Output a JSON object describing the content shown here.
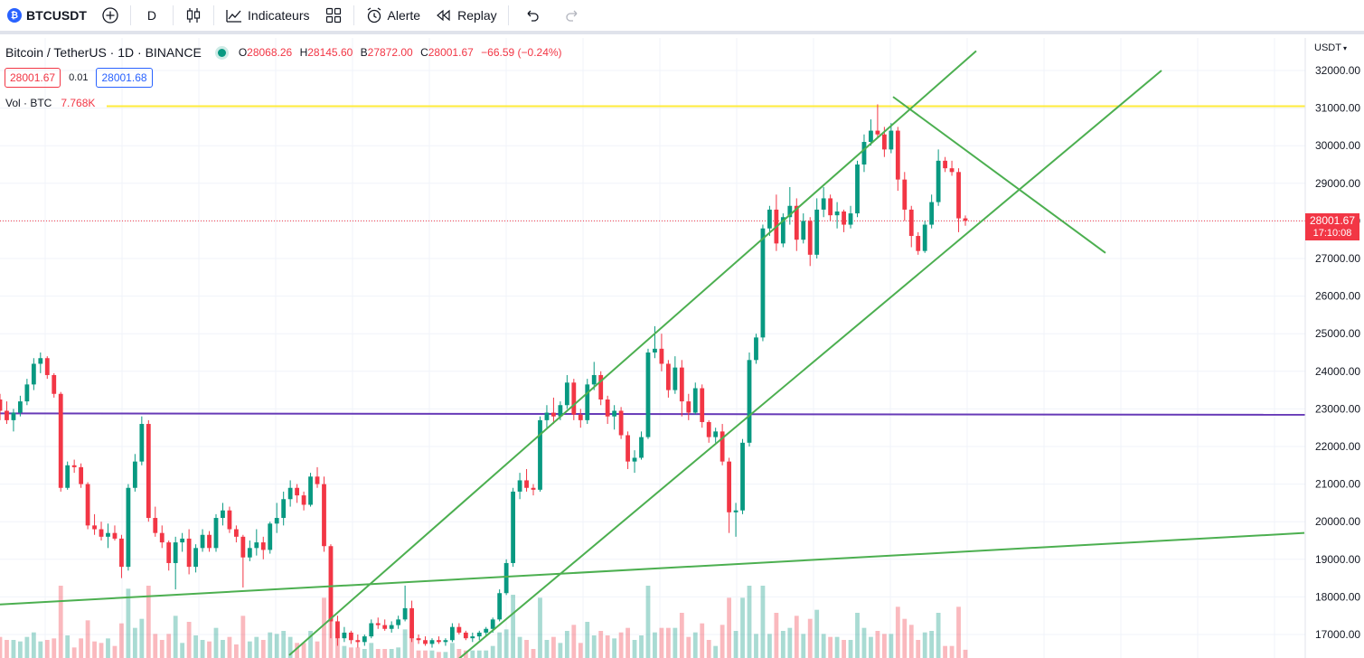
{
  "toolbar": {
    "symbol": "BTCUSDT",
    "logo_glyph": "₿",
    "interval": "D",
    "indicators_label": "Indicateurs",
    "alert_label": "Alerte",
    "replay_label": "Replay"
  },
  "legend": {
    "title": "Bitcoin / TetherUS · 1D · BINANCE",
    "o_label": "O",
    "o": "28068.26",
    "h_label": "H",
    "h": "28145.60",
    "l_label": "B",
    "l": "27872.00",
    "c_label": "C",
    "c": "28001.67",
    "change": "−66.59 (−0.24%)"
  },
  "prices": {
    "sell": "28001.67",
    "spread": "0.01",
    "buy": "28001.68"
  },
  "volume": {
    "label": "Vol · BTC",
    "value": "7.768K"
  },
  "axis": {
    "unit": "USDT",
    "caret": "▾"
  },
  "last_price": {
    "price": "28001.67",
    "countdown": "17:10:08"
  },
  "colors": {
    "up": "#089981",
    "down": "#f23645",
    "trendline": "#4caf50",
    "level_yellow": "#ffeb3b",
    "level_purple": "#673ab7",
    "accent": "#2962ff"
  },
  "chart_data": {
    "type": "candlestick",
    "y_ticks": [
      "32000.00",
      "31000.00",
      "30000.00",
      "29000.00",
      "28000.00",
      "27000.00",
      "26000.00",
      "25000.00",
      "24000.00",
      "23000.00",
      "22000.00",
      "21000.00",
      "20000.00",
      "19000.00",
      "18000.00",
      "17000.00"
    ],
    "ylim": [
      16600,
      32500
    ],
    "last_close": 28001.67,
    "horizontal_levels": [
      {
        "price": 31050,
        "color": "yellow"
      },
      {
        "price": 22880,
        "color": "purple"
      }
    ],
    "trendlines": [
      {
        "p1": [
          0,
          17800
        ],
        "p2": [
          1443,
          19700
        ]
      },
      {
        "p1": [
          320,
          16450
        ],
        "p2": [
          1080,
          32520
        ]
      },
      {
        "p1": [
          505,
          16300
        ],
        "p2": [
          1285,
          32000
        ]
      },
      {
        "p1": [
          988,
          31300
        ],
        "p2": [
          1223,
          27150
        ]
      }
    ],
    "candles": [
      [
        23250,
        23400,
        22700,
        22950
      ],
      [
        22950,
        23200,
        22600,
        22700
      ],
      [
        22700,
        23000,
        22400,
        22900
      ],
      [
        22900,
        23350,
        22800,
        23200
      ],
      [
        23200,
        23800,
        23100,
        23650
      ],
      [
        23650,
        24350,
        23500,
        24200
      ],
      [
        24200,
        24500,
        23950,
        24350
      ],
      [
        24350,
        24400,
        23800,
        23900
      ],
      [
        23900,
        23950,
        23300,
        23400
      ],
      [
        23400,
        23450,
        20800,
        20900
      ],
      [
        20900,
        21600,
        20850,
        21500
      ],
      [
        21500,
        21650,
        21300,
        21450
      ],
      [
        21450,
        21550,
        20900,
        21000
      ],
      [
        21000,
        21050,
        19800,
        19900
      ],
      [
        19900,
        20200,
        19650,
        19800
      ],
      [
        19800,
        20000,
        19500,
        19600
      ],
      [
        19600,
        19950,
        19300,
        19700
      ],
      [
        19700,
        19900,
        19500,
        19550
      ],
      [
        19550,
        19650,
        18500,
        18800
      ],
      [
        18800,
        21000,
        18700,
        20900
      ],
      [
        20900,
        21800,
        20800,
        21600
      ],
      [
        21600,
        22800,
        21500,
        22600
      ],
      [
        22600,
        22700,
        20000,
        20100
      ],
      [
        20100,
        20400,
        19600,
        19700
      ],
      [
        19700,
        19900,
        19300,
        19450
      ],
      [
        19450,
        19500,
        18700,
        18900
      ],
      [
        18900,
        19600,
        18200,
        19450
      ],
      [
        19450,
        19700,
        19200,
        19550
      ],
      [
        19550,
        19800,
        18600,
        18800
      ],
      [
        18800,
        19400,
        18650,
        19300
      ],
      [
        19300,
        19800,
        19200,
        19650
      ],
      [
        19650,
        19750,
        19200,
        19300
      ],
      [
        19300,
        20200,
        19200,
        20100
      ],
      [
        20100,
        20500,
        19900,
        20300
      ],
      [
        20300,
        20400,
        19700,
        19800
      ],
      [
        19800,
        19900,
        19450,
        19600
      ],
      [
        19600,
        19650,
        18250,
        19050
      ],
      [
        19050,
        19500,
        18950,
        19300
      ],
      [
        19300,
        19800,
        19100,
        19450
      ],
      [
        19450,
        19600,
        19000,
        19250
      ],
      [
        19250,
        20000,
        19150,
        19950
      ],
      [
        19950,
        20500,
        19700,
        20100
      ],
      [
        20100,
        20800,
        19900,
        20600
      ],
      [
        20600,
        21100,
        20400,
        20900
      ],
      [
        20900,
        21000,
        20500,
        20700
      ],
      [
        20700,
        20800,
        20300,
        20450
      ],
      [
        20450,
        21300,
        20400,
        21200
      ],
      [
        21200,
        21450,
        20900,
        21000
      ],
      [
        21000,
        21200,
        19200,
        19350
      ],
      [
        19350,
        19400,
        16900,
        17350
      ],
      [
        17350,
        17500,
        16700,
        16900
      ],
      [
        16900,
        17200,
        16800,
        17050
      ],
      [
        17050,
        17100,
        16750,
        16850
      ],
      [
        16850,
        17000,
        16650,
        16800
      ],
      [
        16800,
        17000,
        16700,
        16950
      ],
      [
        16950,
        17400,
        16900,
        17300
      ],
      [
        17300,
        17450,
        17150,
        17250
      ],
      [
        17250,
        17400,
        17100,
        17150
      ],
      [
        17150,
        17350,
        17050,
        17250
      ],
      [
        17250,
        17500,
        17150,
        17400
      ],
      [
        17400,
        18300,
        17350,
        17700
      ],
      [
        17700,
        17900,
        16800,
        16900
      ],
      [
        16900,
        17000,
        16750,
        16850
      ],
      [
        16850,
        16950,
        16700,
        16750
      ],
      [
        16750,
        16900,
        16650,
        16850
      ],
      [
        16850,
        16950,
        16750,
        16800
      ],
      [
        16800,
        16900,
        16700,
        16850
      ],
      [
        16850,
        17300,
        16800,
        17200
      ],
      [
        17200,
        17300,
        17000,
        17050
      ],
      [
        17050,
        17100,
        16850,
        16900
      ],
      [
        16900,
        17050,
        16800,
        16950
      ],
      [
        16950,
        17100,
        16850,
        17050
      ],
      [
        17050,
        17200,
        16950,
        17150
      ],
      [
        17150,
        17450,
        17050,
        17400
      ],
      [
        17400,
        18200,
        17350,
        18100
      ],
      [
        18100,
        19000,
        18050,
        18900
      ],
      [
        18900,
        20900,
        18800,
        20800
      ],
      [
        20800,
        21300,
        20600,
        21100
      ],
      [
        21100,
        21400,
        20800,
        20900
      ],
      [
        20900,
        21000,
        20700,
        20850
      ],
      [
        20850,
        22800,
        20800,
        22700
      ],
      [
        22700,
        23100,
        22500,
        22900
      ],
      [
        22900,
        23300,
        22600,
        22800
      ],
      [
        22800,
        23200,
        22700,
        23100
      ],
      [
        23100,
        23900,
        23000,
        23700
      ],
      [
        23700,
        23800,
        22700,
        22850
      ],
      [
        22850,
        23000,
        22500,
        22700
      ],
      [
        22700,
        23800,
        22600,
        23650
      ],
      [
        23650,
        24250,
        23500,
        23900
      ],
      [
        23900,
        24000,
        23100,
        23250
      ],
      [
        23250,
        23350,
        22600,
        22800
      ],
      [
        22800,
        23100,
        22450,
        22950
      ],
      [
        22950,
        23050,
        22200,
        22300
      ],
      [
        22300,
        22400,
        21400,
        21600
      ],
      [
        21600,
        21900,
        21300,
        21700
      ],
      [
        21700,
        22400,
        21650,
        22250
      ],
      [
        22250,
        24600,
        22200,
        24500
      ],
      [
        24500,
        25200,
        24350,
        24600
      ],
      [
        24600,
        25000,
        24000,
        24200
      ],
      [
        24200,
        24300,
        23300,
        23500
      ],
      [
        23500,
        24400,
        23400,
        24100
      ],
      [
        24100,
        24300,
        22800,
        23200
      ],
      [
        23200,
        23400,
        22700,
        22900
      ],
      [
        22900,
        23700,
        22850,
        23550
      ],
      [
        23550,
        23650,
        22500,
        22650
      ],
      [
        22650,
        22700,
        22100,
        22250
      ],
      [
        22250,
        22500,
        22100,
        22400
      ],
      [
        22400,
        22600,
        21500,
        21600
      ],
      [
        21600,
        21700,
        19700,
        20250
      ],
      [
        20250,
        20500,
        19600,
        20300
      ],
      [
        20300,
        22200,
        20200,
        22100
      ],
      [
        22100,
        24500,
        22000,
        24300
      ],
      [
        24300,
        25000,
        24200,
        24900
      ],
      [
        24900,
        27900,
        24800,
        27800
      ],
      [
        27800,
        28400,
        27600,
        28300
      ],
      [
        28300,
        28700,
        27200,
        27400
      ],
      [
        27400,
        28200,
        27300,
        28100
      ],
      [
        28100,
        28900,
        27900,
        28400
      ],
      [
        28400,
        28600,
        27200,
        27500
      ],
      [
        27500,
        28200,
        27400,
        28000
      ],
      [
        28000,
        28100,
        26800,
        27100
      ],
      [
        27100,
        28600,
        27000,
        28300
      ],
      [
        28300,
        28900,
        28100,
        28600
      ],
      [
        28600,
        28700,
        28000,
        28150
      ],
      [
        28150,
        28500,
        27800,
        28250
      ],
      [
        28250,
        28300,
        27700,
        27900
      ],
      [
        27900,
        28400,
        27800,
        28200
      ],
      [
        28200,
        29600,
        28100,
        29500
      ],
      [
        29500,
        30300,
        29300,
        30100
      ],
      [
        30100,
        30700,
        30000,
        30400
      ],
      [
        30400,
        31100,
        30200,
        30300
      ],
      [
        30300,
        30500,
        29700,
        29900
      ],
      [
        29900,
        30600,
        29800,
        30400
      ],
      [
        30400,
        30500,
        28800,
        29100
      ],
      [
        29100,
        29300,
        28000,
        28300
      ],
      [
        28300,
        28400,
        27300,
        27600
      ],
      [
        27600,
        27700,
        27100,
        27200
      ],
      [
        27200,
        28000,
        27150,
        27900
      ],
      [
        27900,
        28700,
        27800,
        28500
      ],
      [
        28500,
        29900,
        28400,
        29600
      ],
      [
        29600,
        29700,
        29300,
        29400
      ],
      [
        29400,
        29600,
        29200,
        29300
      ],
      [
        29300,
        29400,
        27700,
        28068
      ],
      [
        28068,
        28146,
        27872,
        28002
      ]
    ]
  }
}
